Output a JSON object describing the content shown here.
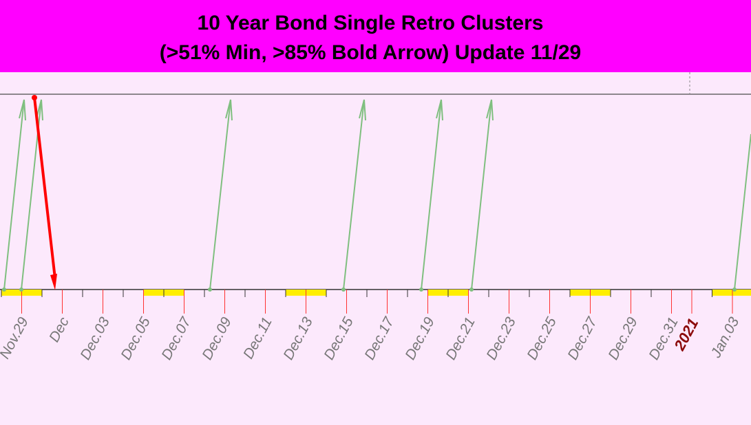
{
  "chart_data": {
    "type": "timeline",
    "title": [
      "10 Year Bond Single Retro Clusters",
      "(>51% Min, >85% Bold Arrow) Update 11/29"
    ],
    "categories": [
      null,
      "Nov.29",
      null,
      "Dec",
      null,
      "Dec.03",
      null,
      "Dec.05",
      null,
      "Dec.07",
      null,
      "Dec.09",
      null,
      "Dec.11",
      null,
      "Dec.13",
      null,
      "Dec.15",
      null,
      "Dec.17",
      null,
      "Dec.19",
      null,
      "Dec.21",
      null,
      "Dec.23",
      null,
      "Dec.25",
      null,
      "Dec.27",
      null,
      "Dec.29",
      null,
      "Dec.31",
      "2021",
      null,
      "Jan.03",
      null
    ]
  }
}
